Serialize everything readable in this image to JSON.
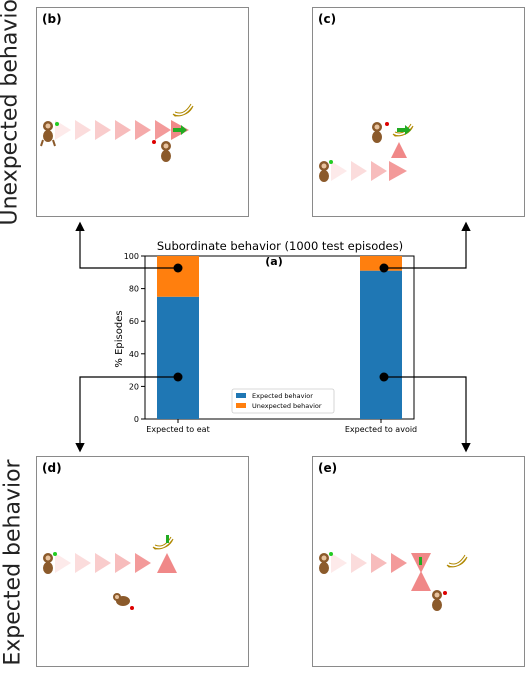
{
  "side_labels": {
    "top": "Unexpected behavior",
    "bottom": "Expected behavior"
  },
  "panels": {
    "b": "(b)",
    "c": "(c)",
    "d": "(d)",
    "e": "(e)"
  },
  "chart_data": {
    "type": "bar",
    "panel_label": "(a)",
    "title": "Subordinate behavior (1000 test episodes)",
    "ylabel": "% Episodes",
    "xlabel": "",
    "categories": [
      "Expected to eat",
      "Expected to avoid"
    ],
    "series": [
      {
        "name": "Expected behavior",
        "color": "#1f77b4",
        "values": [
          75,
          91
        ]
      },
      {
        "name": "Unexpected behavior",
        "color": "#ff7f0e",
        "values": [
          25,
          9
        ]
      }
    ],
    "ylim": [
      0,
      100
    ],
    "yticks": [
      "0",
      "20",
      "40",
      "60",
      "80",
      "100"
    ],
    "stacked": true,
    "legend_position": "lower-center",
    "grid": false
  },
  "colors": {
    "arrow": "#000000",
    "trail": "#f08080",
    "goal_dot": "#22cc22",
    "sub_dot": "#dd0000"
  },
  "icons": [
    "monkey-icon",
    "banana-icon",
    "trail-triangle-icon"
  ]
}
